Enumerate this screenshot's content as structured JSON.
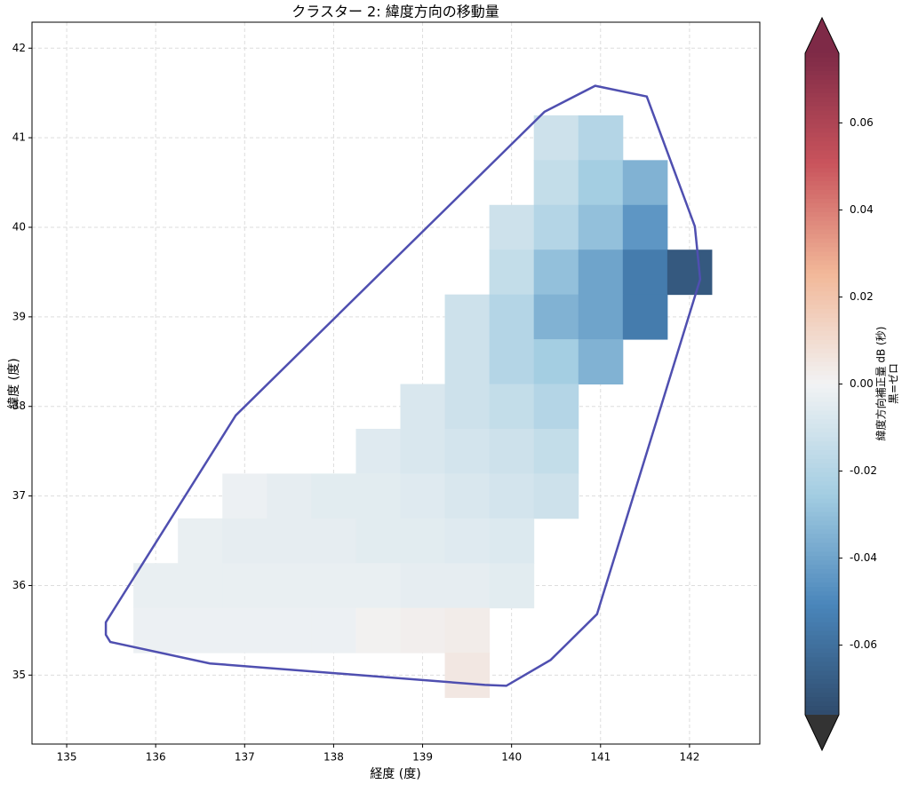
{
  "chart_data": {
    "type": "heatmap",
    "title": "クラスター 2: 緯度方向の移動量",
    "xlabel": "経度 (度)",
    "ylabel": "緯度 (度)",
    "xlim": [
      134.61,
      142.79
    ],
    "ylim": [
      34.23,
      42.29
    ],
    "xticks": [
      135,
      136,
      137,
      138,
      139,
      140,
      141,
      142
    ],
    "yticks": [
      35,
      36,
      37,
      38,
      39,
      40,
      41,
      42
    ],
    "grid": true,
    "field": {
      "lon": [
        140.5,
        141.0,
        140.5,
        141.0,
        141.5,
        140.0,
        140.5,
        141.0,
        141.5,
        140.0,
        140.5,
        141.0,
        141.5,
        142.0,
        139.5,
        140.0,
        140.5,
        141.0,
        141.5,
        139.5,
        140.0,
        140.5,
        141.0,
        139.0,
        139.5,
        140.0,
        140.5,
        138.5,
        139.0,
        139.5,
        140.0,
        140.5,
        137.0,
        137.5,
        138.0,
        138.5,
        139.0,
        139.5,
        140.0,
        140.5,
        136.5,
        137.0,
        137.5,
        138.0,
        138.5,
        139.0,
        139.5,
        140.0,
        136.0,
        136.5,
        137.0,
        137.5,
        138.0,
        138.5,
        139.0,
        139.5,
        140.0,
        136.0,
        136.5,
        137.0,
        137.5,
        138.0,
        138.5,
        139.0,
        139.5,
        139.5
      ],
      "lat": [
        41.0,
        41.0,
        40.5,
        40.5,
        40.5,
        40.0,
        40.0,
        40.0,
        40.0,
        39.5,
        39.5,
        39.5,
        39.5,
        39.5,
        39.0,
        39.0,
        39.0,
        39.0,
        39.0,
        38.5,
        38.5,
        38.5,
        38.5,
        38.0,
        38.0,
        38.0,
        38.0,
        37.5,
        37.5,
        37.5,
        37.5,
        37.5,
        37.0,
        37.0,
        37.0,
        37.0,
        37.0,
        37.0,
        37.0,
        37.0,
        36.5,
        36.5,
        36.5,
        36.5,
        36.5,
        36.5,
        36.5,
        36.5,
        36.0,
        36.0,
        36.0,
        36.0,
        36.0,
        36.0,
        36.0,
        36.0,
        36.0,
        35.5,
        35.5,
        35.5,
        35.5,
        35.5,
        35.5,
        35.5,
        35.5,
        35.0
      ],
      "values": [
        -0.012,
        -0.02,
        -0.015,
        -0.025,
        -0.035,
        -0.012,
        -0.02,
        -0.03,
        -0.045,
        -0.015,
        -0.03,
        -0.04,
        -0.055,
        -0.07,
        -0.012,
        -0.02,
        -0.035,
        -0.04,
        -0.055,
        -0.012,
        -0.02,
        -0.025,
        -0.035,
        -0.008,
        -0.012,
        -0.015,
        -0.02,
        -0.006,
        -0.008,
        -0.01,
        -0.012,
        -0.015,
        -0.002,
        -0.004,
        -0.005,
        -0.005,
        -0.006,
        -0.008,
        -0.01,
        -0.012,
        -0.003,
        -0.004,
        -0.004,
        -0.004,
        -0.005,
        -0.005,
        -0.006,
        -0.007,
        -0.003,
        -0.003,
        -0.003,
        -0.003,
        -0.003,
        -0.003,
        -0.004,
        -0.004,
        -0.005,
        -0.002,
        -0.002,
        -0.002,
        -0.002,
        -0.002,
        0.001,
        0.002,
        0.003,
        0.005
      ]
    },
    "hull": {
      "color": "#4f4fb0",
      "lon": [
        140.94,
        141.52,
        142.06,
        142.12,
        140.96,
        140.44,
        139.94,
        139.7,
        136.61,
        135.49,
        135.44,
        135.44,
        136.9,
        140.37
      ],
      "lat": [
        41.58,
        41.46,
        40.01,
        39.42,
        35.68,
        35.17,
        34.88,
        34.89,
        35.13,
        35.37,
        35.45,
        35.59,
        37.9,
        41.29
      ]
    },
    "colorbar": {
      "label": [
        "緯度方向補正量 dB (秒)",
        "黒=ゼロ"
      ],
      "clim": [
        -0.076,
        0.076
      ],
      "ticks": [
        -0.06,
        -0.04,
        -0.02,
        {
          "value": 0,
          "label": "0.00"
        },
        0.02,
        0.04,
        0.06
      ],
      "colormap": [
        "#2f4b6c",
        "#4a86bb",
        "#a3cde2",
        "#f2f3f4",
        "#f2b899",
        "#c9545c",
        "#7e2a47"
      ],
      "extend_colors": [
        "#333333",
        "#7e2a47"
      ]
    }
  }
}
